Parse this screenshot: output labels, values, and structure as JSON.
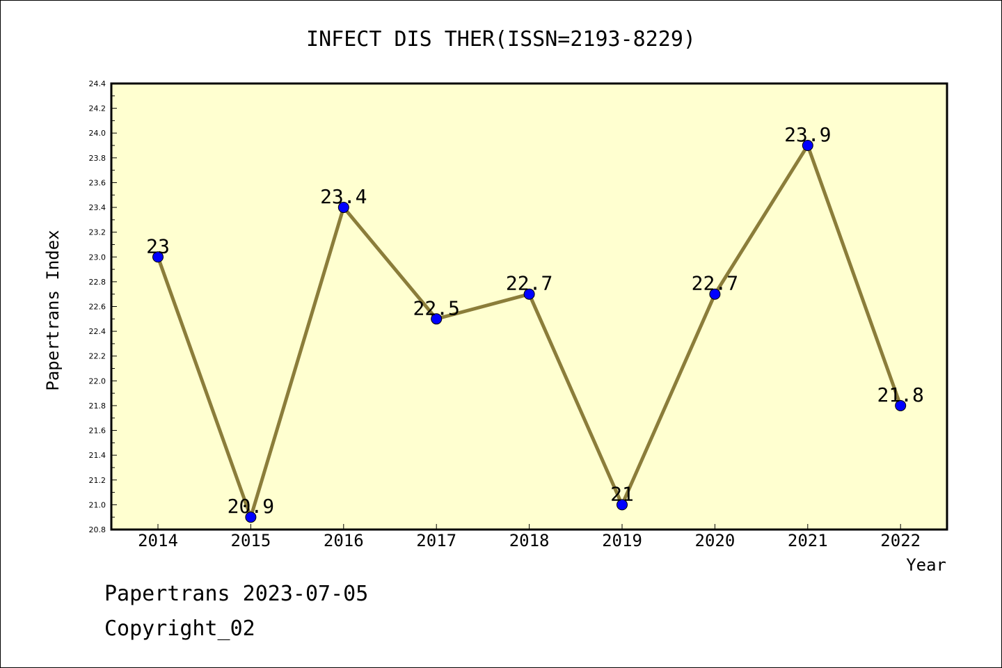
{
  "chart_data": {
    "type": "line",
    "title": "INFECT DIS THER(ISSN=2193-8229)",
    "xlabel": "Year",
    "ylabel": "Papertrans Index",
    "categories": [
      "2014",
      "2015",
      "2016",
      "2017",
      "2018",
      "2019",
      "2020",
      "2021",
      "2022"
    ],
    "values": [
      23,
      20.9,
      23.4,
      22.5,
      22.7,
      21,
      22.7,
      23.9,
      21.8
    ],
    "data_labels": [
      "23",
      "20.9",
      "23.4",
      "22.5",
      "22.7",
      "21",
      "22.7",
      "23.9",
      "21.8"
    ],
    "ylim": [
      20.8,
      24.4
    ],
    "yticks": [
      "20.8",
      "21.0",
      "21.2",
      "21.4",
      "21.6",
      "21.8",
      "22.0",
      "22.2",
      "22.4",
      "22.6",
      "22.8",
      "23.0",
      "23.2",
      "23.4",
      "23.6",
      "23.8",
      "24.0",
      "24.2",
      "24.4"
    ],
    "grid": false,
    "colors": {
      "plot_background": "#ffffd0",
      "line": "#8b7d3a",
      "marker": "#0000ff"
    }
  },
  "footer": {
    "date_line": "Papertrans 2023-07-05",
    "copyright_line": "Copyright_02"
  }
}
